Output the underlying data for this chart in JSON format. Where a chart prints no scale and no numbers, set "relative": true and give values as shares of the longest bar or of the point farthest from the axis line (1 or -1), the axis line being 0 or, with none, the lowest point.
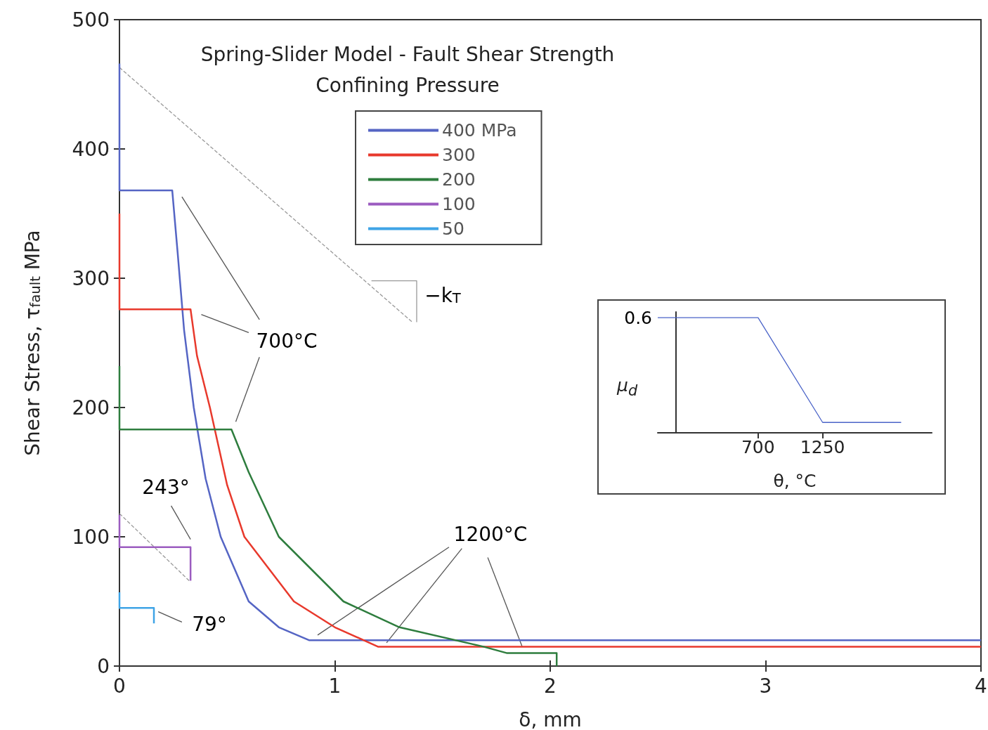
{
  "chart_data": [
    {
      "type": "line",
      "title": "Spring-Slider Model - Fault Shear Strength",
      "legend_title": "Confining Pressure",
      "xlabel": "δ, mm",
      "ylabel": "Shear Stress, τ$_{fault}$ MPa",
      "xlim": [
        0,
        4
      ],
      "xticks": [
        0,
        1,
        2,
        3,
        4
      ],
      "ylim": [
        0,
        500
      ],
      "yticks": [
        0,
        100,
        200,
        300,
        400,
        500
      ],
      "grid": false,
      "legend": "top",
      "marker": "none",
      "line_style": "solid",
      "series": [
        {
          "name": "400 MPa",
          "color": "#5565c4",
          "x": [
            0,
            0,
            0.245,
            0.27,
            0.3,
            0.345,
            0.4,
            0.47,
            0.6,
            0.74,
            0.88,
            4
          ],
          "values": [
            466,
            368,
            368,
            320,
            260,
            200,
            145,
            100,
            50,
            30,
            20,
            20
          ]
        },
        {
          "name": "300",
          "color": "#e8392c",
          "x": [
            0,
            0,
            0.33,
            0.36,
            0.42,
            0.5,
            0.58,
            0.81,
            1.0,
            1.2,
            4
          ],
          "values": [
            350,
            276,
            276,
            240,
            200,
            140,
            100,
            50,
            30,
            15,
            15
          ]
        },
        {
          "name": "200",
          "color": "#2e7d3e",
          "x": [
            0,
            0,
            0.52,
            0.6,
            0.74,
            1.04,
            1.3,
            1.69,
            1.8,
            2.03,
            2.03
          ],
          "values": [
            232,
            183,
            183,
            150,
            100,
            50,
            30,
            15,
            10,
            10,
            0
          ]
        },
        {
          "name": "100",
          "color": "#9b5cc0",
          "x": [
            0,
            0,
            0.33,
            0.33
          ],
          "values": [
            117,
            92,
            92,
            66
          ]
        },
        {
          "name": "50",
          "color": "#3fa4e6",
          "x": [
            0,
            0,
            0.16,
            0.16
          ],
          "values": [
            57,
            45,
            45,
            33
          ]
        },
        {
          "color": "#999999",
          "line_style": "dashed",
          "x": [
            0,
            1.36
          ],
          "values": [
            463,
            266
          ]
        },
        {
          "color": "#999999",
          "line_style": "dashed",
          "x": [
            0,
            0.33
          ],
          "values": [
            118,
            65
          ]
        },
        {
          "color": "#999999",
          "x": [
            1.17,
            1.38,
            1.38
          ],
          "values": [
            298,
            298,
            266
          ]
        },
        {
          "color": "#555555",
          "x": [
            0.29,
            0.65
          ],
          "values": [
            363,
            268
          ]
        },
        {
          "color": "#555555",
          "x": [
            0.38,
            0.6
          ],
          "values": [
            272,
            258
          ]
        },
        {
          "color": "#555555",
          "x": [
            0.65,
            0.54
          ],
          "values": [
            239,
            189
          ]
        },
        {
          "color": "#555555",
          "x": [
            1.53,
            0.92
          ],
          "values": [
            92,
            24
          ]
        },
        {
          "color": "#555555",
          "x": [
            1.59,
            1.24
          ],
          "values": [
            91,
            18
          ]
        },
        {
          "color": "#555555",
          "x": [
            1.71,
            1.87
          ],
          "values": [
            84,
            15
          ]
        },
        {
          "color": "#555555",
          "x": [
            0.24,
            0.33
          ],
          "values": [
            124,
            98
          ]
        },
        {
          "color": "#555555",
          "x": [
            0.18,
            0.29
          ],
          "values": [
            42,
            34
          ]
        }
      ],
      "annotations": [
        "700°C",
        "1200°C",
        "243°",
        "79°",
        "−k$_{T}$"
      ]
    },
    {
      "type": "line",
      "relative": true,
      "xlabel": "θ, °C",
      "ylabel": "μ$_{d}$",
      "xlim": [
        -155,
        2180
      ],
      "xticks": [
        700,
        {
          "value": 1250,
          "label": "1250"
        }
      ],
      "marker": "none",
      "legend": false,
      "series": [
        {
          "color": "#4a63c8",
          "x": [
            -155,
            700,
            1250,
            1919
          ],
          "values": [
            1,
            1,
            0.09,
            0.09
          ]
        }
      ],
      "annotations": [
        "0.6"
      ]
    }
  ]
}
